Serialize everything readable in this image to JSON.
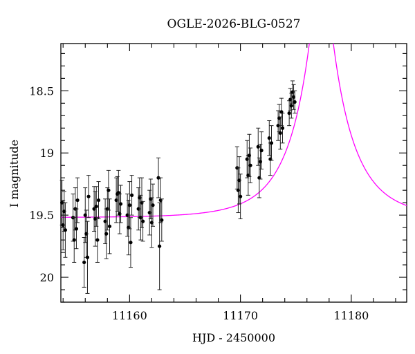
{
  "chart_data": {
    "type": "scatter",
    "title": "OGLE-2026-BLG-0527",
    "xlabel": "HJD - 2450000",
    "ylabel": "I magnitude",
    "xlim": [
      11153.8,
      11185.0
    ],
    "ylim": [
      20.2,
      18.12
    ],
    "y_inverted": true,
    "x_ticks": [
      11160,
      11170,
      11180
    ],
    "y_ticks": [
      18.5,
      19,
      19.5,
      20
    ],
    "y_tick_labels": [
      "18.5",
      "19",
      "19.5",
      "20"
    ],
    "x_minor_step": 2,
    "y_minor_step": 0.1,
    "grid": false,
    "colors": {
      "model": "#ff00ff",
      "data": "#000000",
      "axes": "#000000"
    },
    "model": {
      "name": "",
      "type": "point-lens microlensing fit",
      "t0": 11177.3,
      "tE": 4.5,
      "u0": 0.15,
      "baseline_mag": 19.52,
      "peak_mag": 18.3
    },
    "series": [
      {
        "name": "",
        "points": [
          {
            "x": 11153.9,
            "y": 19.4,
            "err": 0.18
          },
          {
            "x": 11154.0,
            "y": 19.58,
            "err": 0.2
          },
          {
            "x": 11154.1,
            "y": 19.47,
            "err": 0.16
          },
          {
            "x": 11154.2,
            "y": 19.62,
            "err": 0.22
          },
          {
            "x": 11154.9,
            "y": 19.52,
            "err": 0.19
          },
          {
            "x": 11155.0,
            "y": 19.7,
            "err": 0.18
          },
          {
            "x": 11155.1,
            "y": 19.45,
            "err": 0.17
          },
          {
            "x": 11155.2,
            "y": 19.61,
            "err": 0.16
          },
          {
            "x": 11155.3,
            "y": 19.38,
            "err": 0.18
          },
          {
            "x": 11155.9,
            "y": 19.88,
            "err": 0.2
          },
          {
            "x": 11156.0,
            "y": 19.5,
            "err": 0.22
          },
          {
            "x": 11156.1,
            "y": 19.65,
            "err": 0.19
          },
          {
            "x": 11156.2,
            "y": 19.84,
            "err": 0.29
          },
          {
            "x": 11156.3,
            "y": 19.35,
            "err": 0.17
          },
          {
            "x": 11156.8,
            "y": 19.45,
            "err": 0.18
          },
          {
            "x": 11156.9,
            "y": 19.53,
            "err": 0.22
          },
          {
            "x": 11157.0,
            "y": 19.43,
            "err": 0.16
          },
          {
            "x": 11157.1,
            "y": 19.7,
            "err": 0.18
          },
          {
            "x": 11157.2,
            "y": 19.38,
            "err": 0.15
          },
          {
            "x": 11157.8,
            "y": 19.55,
            "err": 0.18
          },
          {
            "x": 11157.9,
            "y": 19.65,
            "err": 0.2
          },
          {
            "x": 11158.0,
            "y": 19.45,
            "err": 0.17
          },
          {
            "x": 11158.1,
            "y": 19.3,
            "err": 0.16
          },
          {
            "x": 11158.2,
            "y": 19.59,
            "err": 0.22
          },
          {
            "x": 11158.8,
            "y": 19.38,
            "err": 0.18
          },
          {
            "x": 11158.9,
            "y": 19.33,
            "err": 0.14
          },
          {
            "x": 11159.0,
            "y": 19.32,
            "err": 0.18
          },
          {
            "x": 11159.1,
            "y": 19.49,
            "err": 0.16
          },
          {
            "x": 11159.2,
            "y": 19.41,
            "err": 0.15
          },
          {
            "x": 11159.8,
            "y": 19.5,
            "err": 0.17
          },
          {
            "x": 11159.9,
            "y": 19.6,
            "err": 0.22
          },
          {
            "x": 11160.0,
            "y": 19.42,
            "err": 0.19
          },
          {
            "x": 11160.1,
            "y": 19.72,
            "err": 0.2
          },
          {
            "x": 11160.2,
            "y": 19.34,
            "err": 0.16
          },
          {
            "x": 11160.8,
            "y": 19.45,
            "err": 0.17
          },
          {
            "x": 11160.9,
            "y": 19.36,
            "err": 0.16
          },
          {
            "x": 11161.0,
            "y": 19.52,
            "err": 0.18
          },
          {
            "x": 11161.1,
            "y": 19.4,
            "err": 0.2
          },
          {
            "x": 11161.2,
            "y": 19.55,
            "err": 0.16
          },
          {
            "x": 11161.8,
            "y": 19.48,
            "err": 0.18
          },
          {
            "x": 11161.9,
            "y": 19.37,
            "err": 0.16
          },
          {
            "x": 11162.0,
            "y": 19.56,
            "err": 0.2
          },
          {
            "x": 11162.1,
            "y": 19.42,
            "err": 0.17
          },
          {
            "x": 11162.6,
            "y": 19.2,
            "err": 0.16
          },
          {
            "x": 11162.7,
            "y": 19.75,
            "err": 0.35
          },
          {
            "x": 11162.8,
            "y": 19.38,
            "err": 0.18
          },
          {
            "x": 11162.9,
            "y": 19.54,
            "err": 0.17
          },
          {
            "x": 11169.7,
            "y": 19.12,
            "err": 0.17
          },
          {
            "x": 11169.8,
            "y": 19.3,
            "err": 0.18
          },
          {
            "x": 11169.9,
            "y": 19.22,
            "err": 0.19
          },
          {
            "x": 11170.0,
            "y": 19.35,
            "err": 0.18
          },
          {
            "x": 11170.6,
            "y": 19.05,
            "err": 0.15
          },
          {
            "x": 11170.7,
            "y": 19.18,
            "err": 0.16
          },
          {
            "x": 11170.8,
            "y": 19.02,
            "err": 0.17
          },
          {
            "x": 11170.9,
            "y": 19.1,
            "err": 0.14
          },
          {
            "x": 11171.6,
            "y": 18.95,
            "err": 0.15
          },
          {
            "x": 11171.7,
            "y": 19.2,
            "err": 0.16
          },
          {
            "x": 11171.8,
            "y": 19.07,
            "err": 0.14
          },
          {
            "x": 11171.9,
            "y": 18.98,
            "err": 0.15
          },
          {
            "x": 11172.6,
            "y": 18.88,
            "err": 0.14
          },
          {
            "x": 11172.7,
            "y": 19.05,
            "err": 0.13
          },
          {
            "x": 11172.8,
            "y": 18.92,
            "err": 0.14
          },
          {
            "x": 11173.4,
            "y": 18.78,
            "err": 0.12
          },
          {
            "x": 11173.5,
            "y": 18.72,
            "err": 0.11
          },
          {
            "x": 11173.6,
            "y": 18.84,
            "err": 0.13
          },
          {
            "x": 11173.7,
            "y": 18.67,
            "err": 0.11
          },
          {
            "x": 11173.8,
            "y": 18.8,
            "err": 0.12
          },
          {
            "x": 11174.4,
            "y": 18.68,
            "err": 0.1
          },
          {
            "x": 11174.5,
            "y": 18.57,
            "err": 0.09
          },
          {
            "x": 11174.6,
            "y": 18.62,
            "err": 0.1
          },
          {
            "x": 11174.7,
            "y": 18.51,
            "err": 0.09
          },
          {
            "x": 11174.8,
            "y": 18.55,
            "err": 0.1
          },
          {
            "x": 11174.9,
            "y": 18.59,
            "err": 0.09
          }
        ]
      }
    ]
  }
}
